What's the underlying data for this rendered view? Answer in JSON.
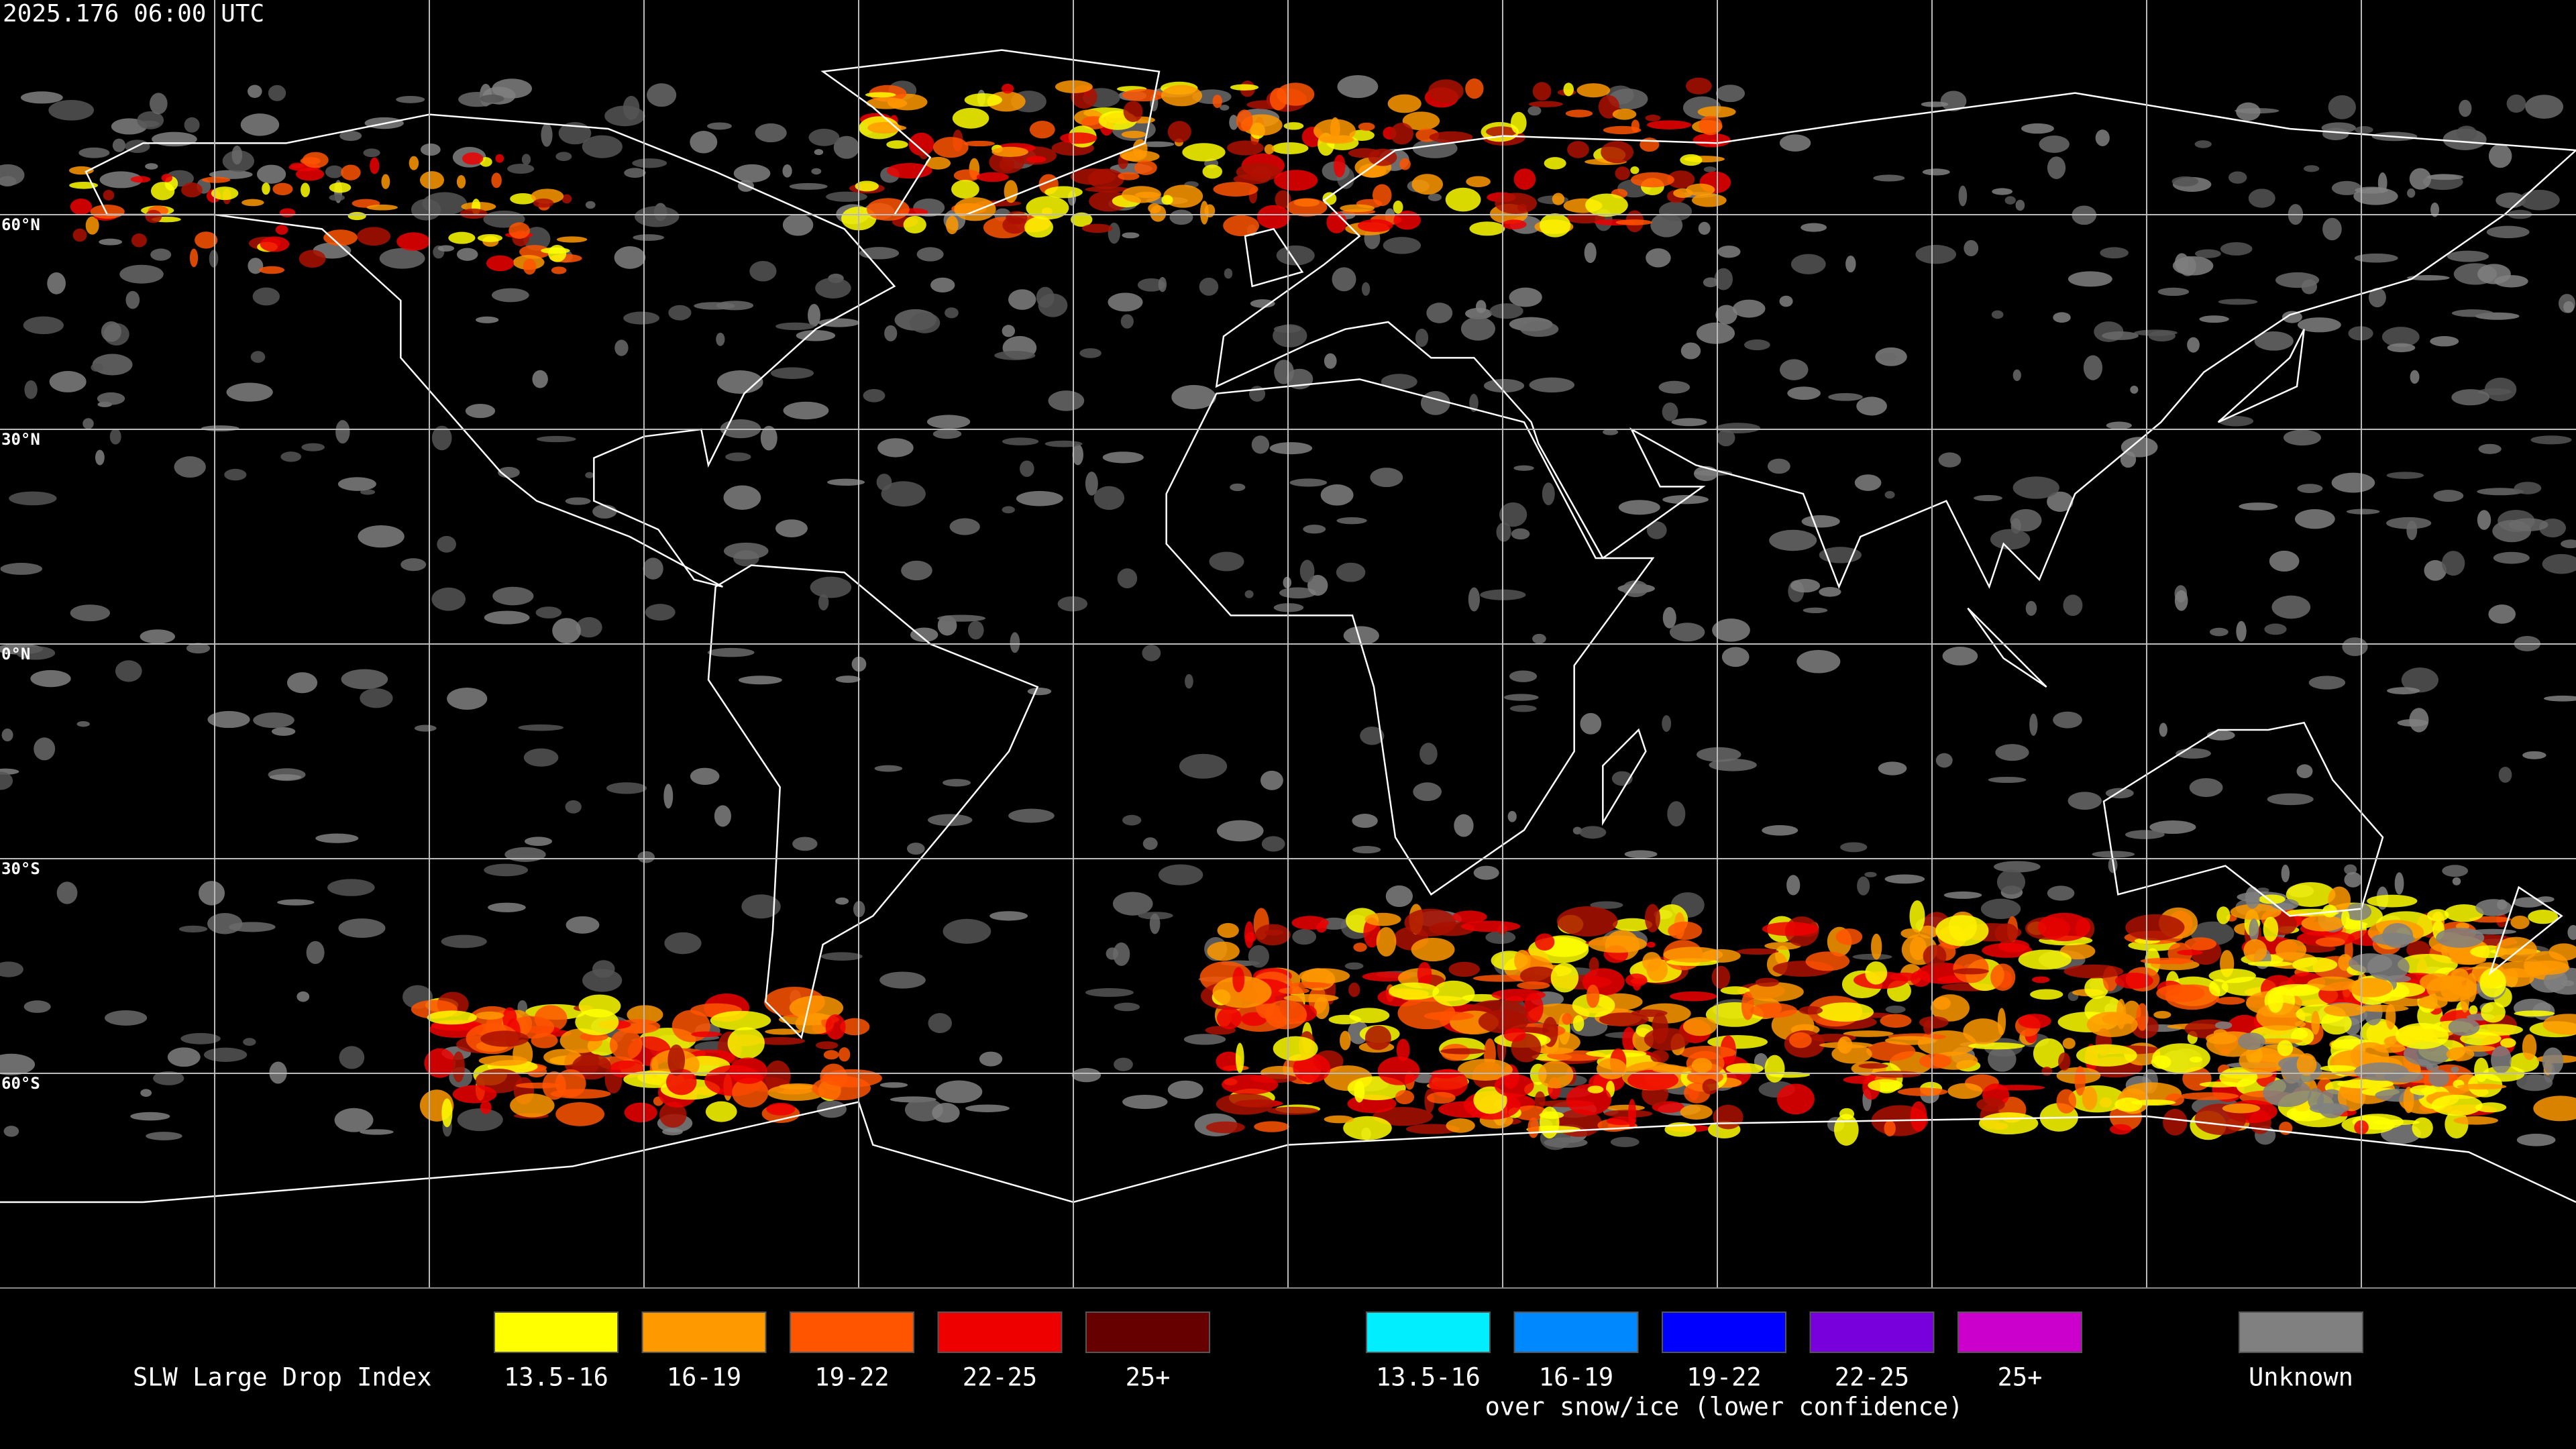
{
  "header": {
    "timestamp": "2025.176 06:00 UTC"
  },
  "map": {
    "latitude_labels": [
      "60°N",
      "30°N",
      "0°N",
      "30°S",
      "60°S"
    ]
  },
  "legend": {
    "title": "SLW Large Drop Index",
    "groups": [
      {
        "items": [
          {
            "label": "13.5-16",
            "color": "#ffff00"
          },
          {
            "label": "16-19",
            "color": "#ff9900"
          },
          {
            "label": "19-22",
            "color": "#ff5500"
          },
          {
            "label": "22-25",
            "color": "#ee0000"
          },
          {
            "label": "25+",
            "color": "#660000"
          }
        ]
      },
      {
        "items": [
          {
            "label": "13.5-16",
            "color": "#00eeff"
          },
          {
            "label": "16-19",
            "color": "#0088ff"
          },
          {
            "label": "19-22",
            "color": "#0000ff"
          },
          {
            "label": "22-25",
            "color": "#7700dd"
          },
          {
            "label": "25+",
            "color": "#cc00cc"
          }
        ],
        "caption": "over snow/ice (lower confidence)"
      },
      {
        "items": [
          {
            "label": "Unknown",
            "color": "#808080"
          }
        ]
      }
    ]
  }
}
